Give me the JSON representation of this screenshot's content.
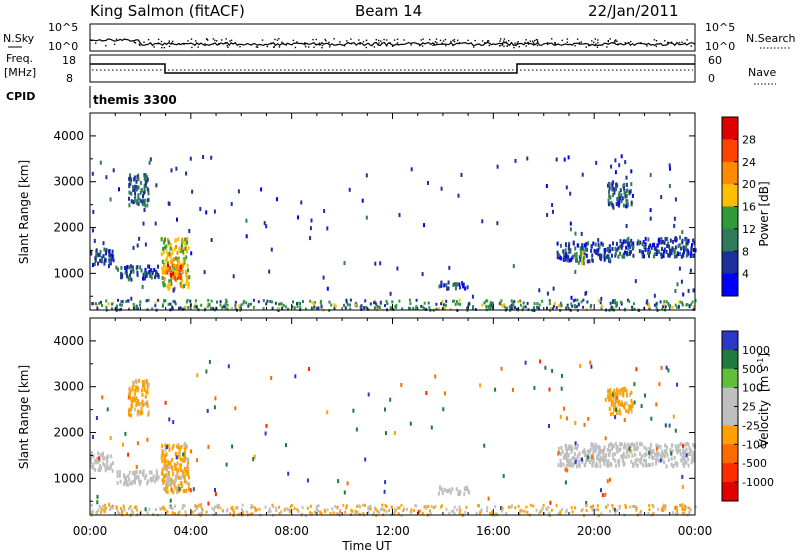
{
  "header": {
    "title": "King Salmon (fitACF)",
    "beam": "Beam 14",
    "date": "22/Jan/2011"
  },
  "noise_panel": {
    "left_label": "N.Sky",
    "right_label": "N.Search",
    "left_ticks": [
      "10^5",
      "10^0"
    ],
    "right_ticks": [
      "10^5",
      "10^0"
    ]
  },
  "freq_panel": {
    "left_label_line1": "Freq.",
    "left_label_line2": "[MHz]",
    "left_ticks": [
      "18",
      "8"
    ],
    "right_label": "Nave",
    "right_ticks": [
      "60",
      "0"
    ]
  },
  "cpid": {
    "label": "CPID",
    "value": "themis 3300"
  },
  "power_scale": {
    "label": "Power [dB]",
    "tick_labels": [
      "28",
      "24",
      "20",
      "16",
      "12",
      "8",
      "4"
    ],
    "colors": [
      "#e00000",
      "#ff4400",
      "#ff8c00",
      "#ffbf00",
      "#2e9a3a",
      "#2f7a5a",
      "#1d2f9a",
      "#0000ff"
    ]
  },
  "velocity_scale": {
    "label": "Velocity",
    "unit_label": "[m s",
    "unit_sup": "-1",
    "unit_close": "]",
    "tick_labels": [
      "1000",
      "500",
      "100",
      "25",
      "-25",
      "-100",
      "-500",
      "-1000"
    ],
    "colors": [
      "#2a37c8",
      "#1e7b3c",
      "#5fbf3a",
      "#bfbfbf",
      "#bfbfbf",
      "#ffa000",
      "#ff6a00",
      "#ff2a00",
      "#e00000"
    ]
  },
  "x_axis": {
    "label": "Time UT",
    "tick_labels": [
      "00:00",
      "04:00",
      "08:00",
      "12:00",
      "16:00",
      "20:00",
      "00:00"
    ]
  },
  "chart_data": [
    {
      "type": "heatmap",
      "title": "Power",
      "ylabel": "Slant Range [km]",
      "y_tick_labels": [
        "1000",
        "2000",
        "3000",
        "4000"
      ],
      "ylim": [
        200,
        4500
      ],
      "xlim": [
        "00:00",
        "24:00"
      ],
      "color_scale": "Power [dB]",
      "color_range": [
        0,
        30
      ],
      "regions": [
        {
          "t_start_h": 0.0,
          "t_end_h": 0.9,
          "range_min_km": 1200,
          "range_max_km": 1600,
          "value": 6
        },
        {
          "t_start_h": 1.0,
          "t_end_h": 2.7,
          "range_min_km": 900,
          "range_max_km": 1200,
          "value": 6
        },
        {
          "t_start_h": 1.5,
          "t_end_h": 2.3,
          "range_min_km": 2500,
          "range_max_km": 3200,
          "value": 8
        },
        {
          "t_start_h": 2.8,
          "t_end_h": 3.9,
          "range_min_km": 700,
          "range_max_km": 1800,
          "value": 16
        },
        {
          "t_start_h": 3.0,
          "t_end_h": 3.6,
          "range_min_km": 900,
          "range_max_km": 1300,
          "value": 24
        },
        {
          "t_start_h": 13.8,
          "t_end_h": 15.0,
          "range_min_km": 700,
          "range_max_km": 850,
          "value": 6
        },
        {
          "t_start_h": 18.5,
          "t_end_h": 21.0,
          "range_min_km": 1300,
          "range_max_km": 1700,
          "value": 6
        },
        {
          "t_start_h": 19.2,
          "t_end_h": 19.6,
          "range_min_km": 1250,
          "range_max_km": 1500,
          "value": 14
        },
        {
          "t_start_h": 21.0,
          "t_end_h": 24.0,
          "range_min_km": 1400,
          "range_max_km": 1800,
          "value": 6
        },
        {
          "t_start_h": 20.5,
          "t_end_h": 21.5,
          "range_min_km": 2500,
          "range_max_km": 3000,
          "value": 7
        }
      ]
    },
    {
      "type": "heatmap",
      "title": "Velocity",
      "ylabel": "Slant Range [km]",
      "y_tick_labels": [
        "1000",
        "2000",
        "3000",
        "4000"
      ],
      "ylim": [
        200,
        4500
      ],
      "xlim": [
        "00:00",
        "24:00"
      ],
      "color_scale": "Velocity [m s-1]",
      "color_range": [
        -1000,
        1000
      ],
      "regions": [
        {
          "t_start_h": 0.0,
          "t_end_h": 0.9,
          "range_min_km": 1200,
          "range_max_km": 1600,
          "value": 0
        },
        {
          "t_start_h": 1.0,
          "t_end_h": 2.7,
          "range_min_km": 900,
          "range_max_km": 1200,
          "value": 60
        },
        {
          "t_start_h": 1.5,
          "t_end_h": 2.3,
          "range_min_km": 2400,
          "range_max_km": 3200,
          "value": -150
        },
        {
          "t_start_h": 2.8,
          "t_end_h": 3.9,
          "range_min_km": 700,
          "range_max_km": 1800,
          "value": -150
        },
        {
          "t_start_h": 3.0,
          "t_end_h": 3.4,
          "range_min_km": 800,
          "range_max_km": 1100,
          "value": 0
        },
        {
          "t_start_h": 13.8,
          "t_end_h": 15.0,
          "range_min_km": 700,
          "range_max_km": 850,
          "value": 60
        },
        {
          "t_start_h": 18.5,
          "t_end_h": 24.0,
          "range_min_km": 1300,
          "range_max_km": 1800,
          "value": 0
        },
        {
          "t_start_h": 20.5,
          "t_end_h": 21.5,
          "range_min_km": 2400,
          "range_max_km": 3000,
          "value": -150
        }
      ]
    }
  ]
}
